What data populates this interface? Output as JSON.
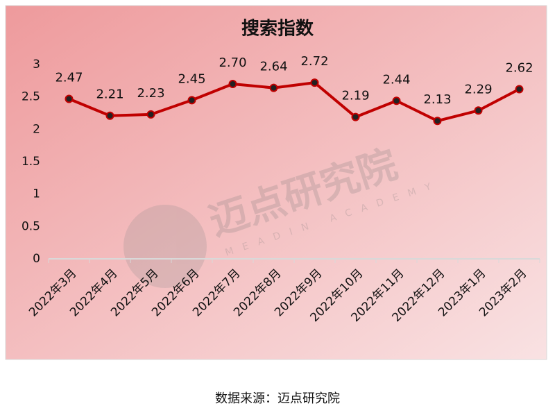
{
  "chart_data": {
    "type": "line",
    "title": "搜索指数",
    "categories": [
      "2022年3月",
      "2022年4月",
      "2022年5月",
      "2022年6月",
      "2022年7月",
      "2022年8月",
      "2022年9月",
      "2022年10月",
      "2022年11月",
      "2022年12月",
      "2023年1月",
      "2023年2月"
    ],
    "values": [
      2.47,
      2.21,
      2.23,
      2.45,
      2.7,
      2.64,
      2.72,
      2.19,
      2.44,
      2.13,
      2.29,
      2.62
    ],
    "value_labels": [
      "2.47",
      "2.21",
      "2.23",
      "2.45",
      "2.70",
      "2.64",
      "2.72",
      "2.19",
      "2.44",
      "2.13",
      "2.29",
      "2.62"
    ],
    "color": "#c00000",
    "ylim": [
      0,
      3
    ],
    "yticks": [
      0,
      0.5,
      1,
      1.5,
      2,
      2.5,
      3
    ],
    "grid": false
  },
  "watermark": {
    "text": "迈点研究院",
    "subtext": "MEADIN ACADEMY"
  },
  "source": "数据来源：迈点研究院"
}
